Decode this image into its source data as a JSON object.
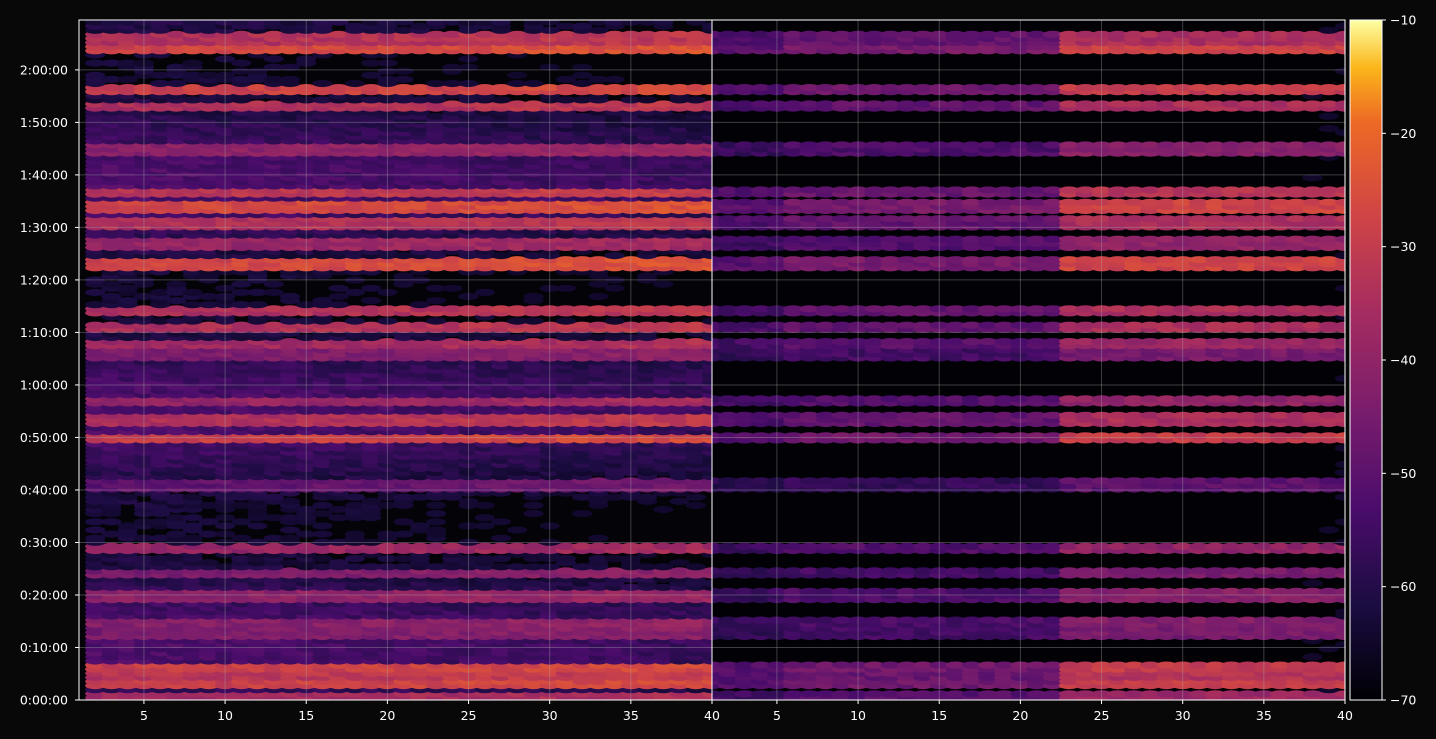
{
  "chart_data": {
    "type": "heatmap",
    "title": "",
    "xlabel": "",
    "ylabel": "",
    "colormap": "inferno",
    "background": "#080808",
    "grid": true,
    "panels": [
      {
        "name": "",
        "xlim": [
          1,
          40
        ],
        "x_ticks": [
          "5",
          "10",
          "15",
          "20",
          "25",
          "30",
          "35",
          "40"
        ],
        "data_x_range": [
          2,
          40
        ],
        "brightness": "high"
      },
      {
        "name": "",
        "xlim": [
          1,
          40
        ],
        "x_ticks": [
          "5",
          "10",
          "15",
          "20",
          "25",
          "30",
          "35",
          "40"
        ],
        "data_x_range": [
          1,
          40
        ],
        "brightness": "low"
      }
    ],
    "y_axis": {
      "unit": "time",
      "ylim": [
        "0:00:00",
        "2:09:30"
      ],
      "ticks": [
        "0:00:00",
        "0:10:00",
        "0:20:00",
        "0:30:00",
        "0:40:00",
        "0:50:00",
        "1:00:00",
        "1:10:00",
        "1:20:00",
        "1:30:00",
        "1:40:00",
        "1:50:00",
        "2:00:00"
      ]
    },
    "colorbar": {
      "min": -70,
      "max": -10,
      "ticks": [
        "−10",
        "−20",
        "−30",
        "−40",
        "−50",
        "−60",
        "−70"
      ]
    },
    "bright_bands_minutes": [
      {
        "t": 1,
        "level": -38
      },
      {
        "t": 3,
        "level": -30
      },
      {
        "t": 5,
        "level": -33
      },
      {
        "t": 6.5,
        "level": -30
      },
      {
        "t": 13,
        "level": -45
      },
      {
        "t": 15,
        "level": -43
      },
      {
        "t": 20,
        "level": -42
      },
      {
        "t": 24,
        "level": -45
      },
      {
        "t": 29,
        "level": -40
      },
      {
        "t": 41,
        "level": -50
      },
      {
        "t": 50,
        "level": -30
      },
      {
        "t": 53.5,
        "level": -35
      },
      {
        "t": 57,
        "level": -40
      },
      {
        "t": 66,
        "level": -45
      },
      {
        "t": 68,
        "level": -38
      },
      {
        "t": 71,
        "level": -35
      },
      {
        "t": 74,
        "level": -35
      },
      {
        "t": 83,
        "level": -28
      },
      {
        "t": 87,
        "level": -40
      },
      {
        "t": 91,
        "level": -35
      },
      {
        "t": 94,
        "level": -28
      },
      {
        "t": 97,
        "level": -33
      },
      {
        "t": 105,
        "level": -42
      },
      {
        "t": 113,
        "level": -35
      },
      {
        "t": 116,
        "level": -30
      },
      {
        "t": 124,
        "level": -28
      },
      {
        "t": 126,
        "level": -35
      }
    ]
  }
}
